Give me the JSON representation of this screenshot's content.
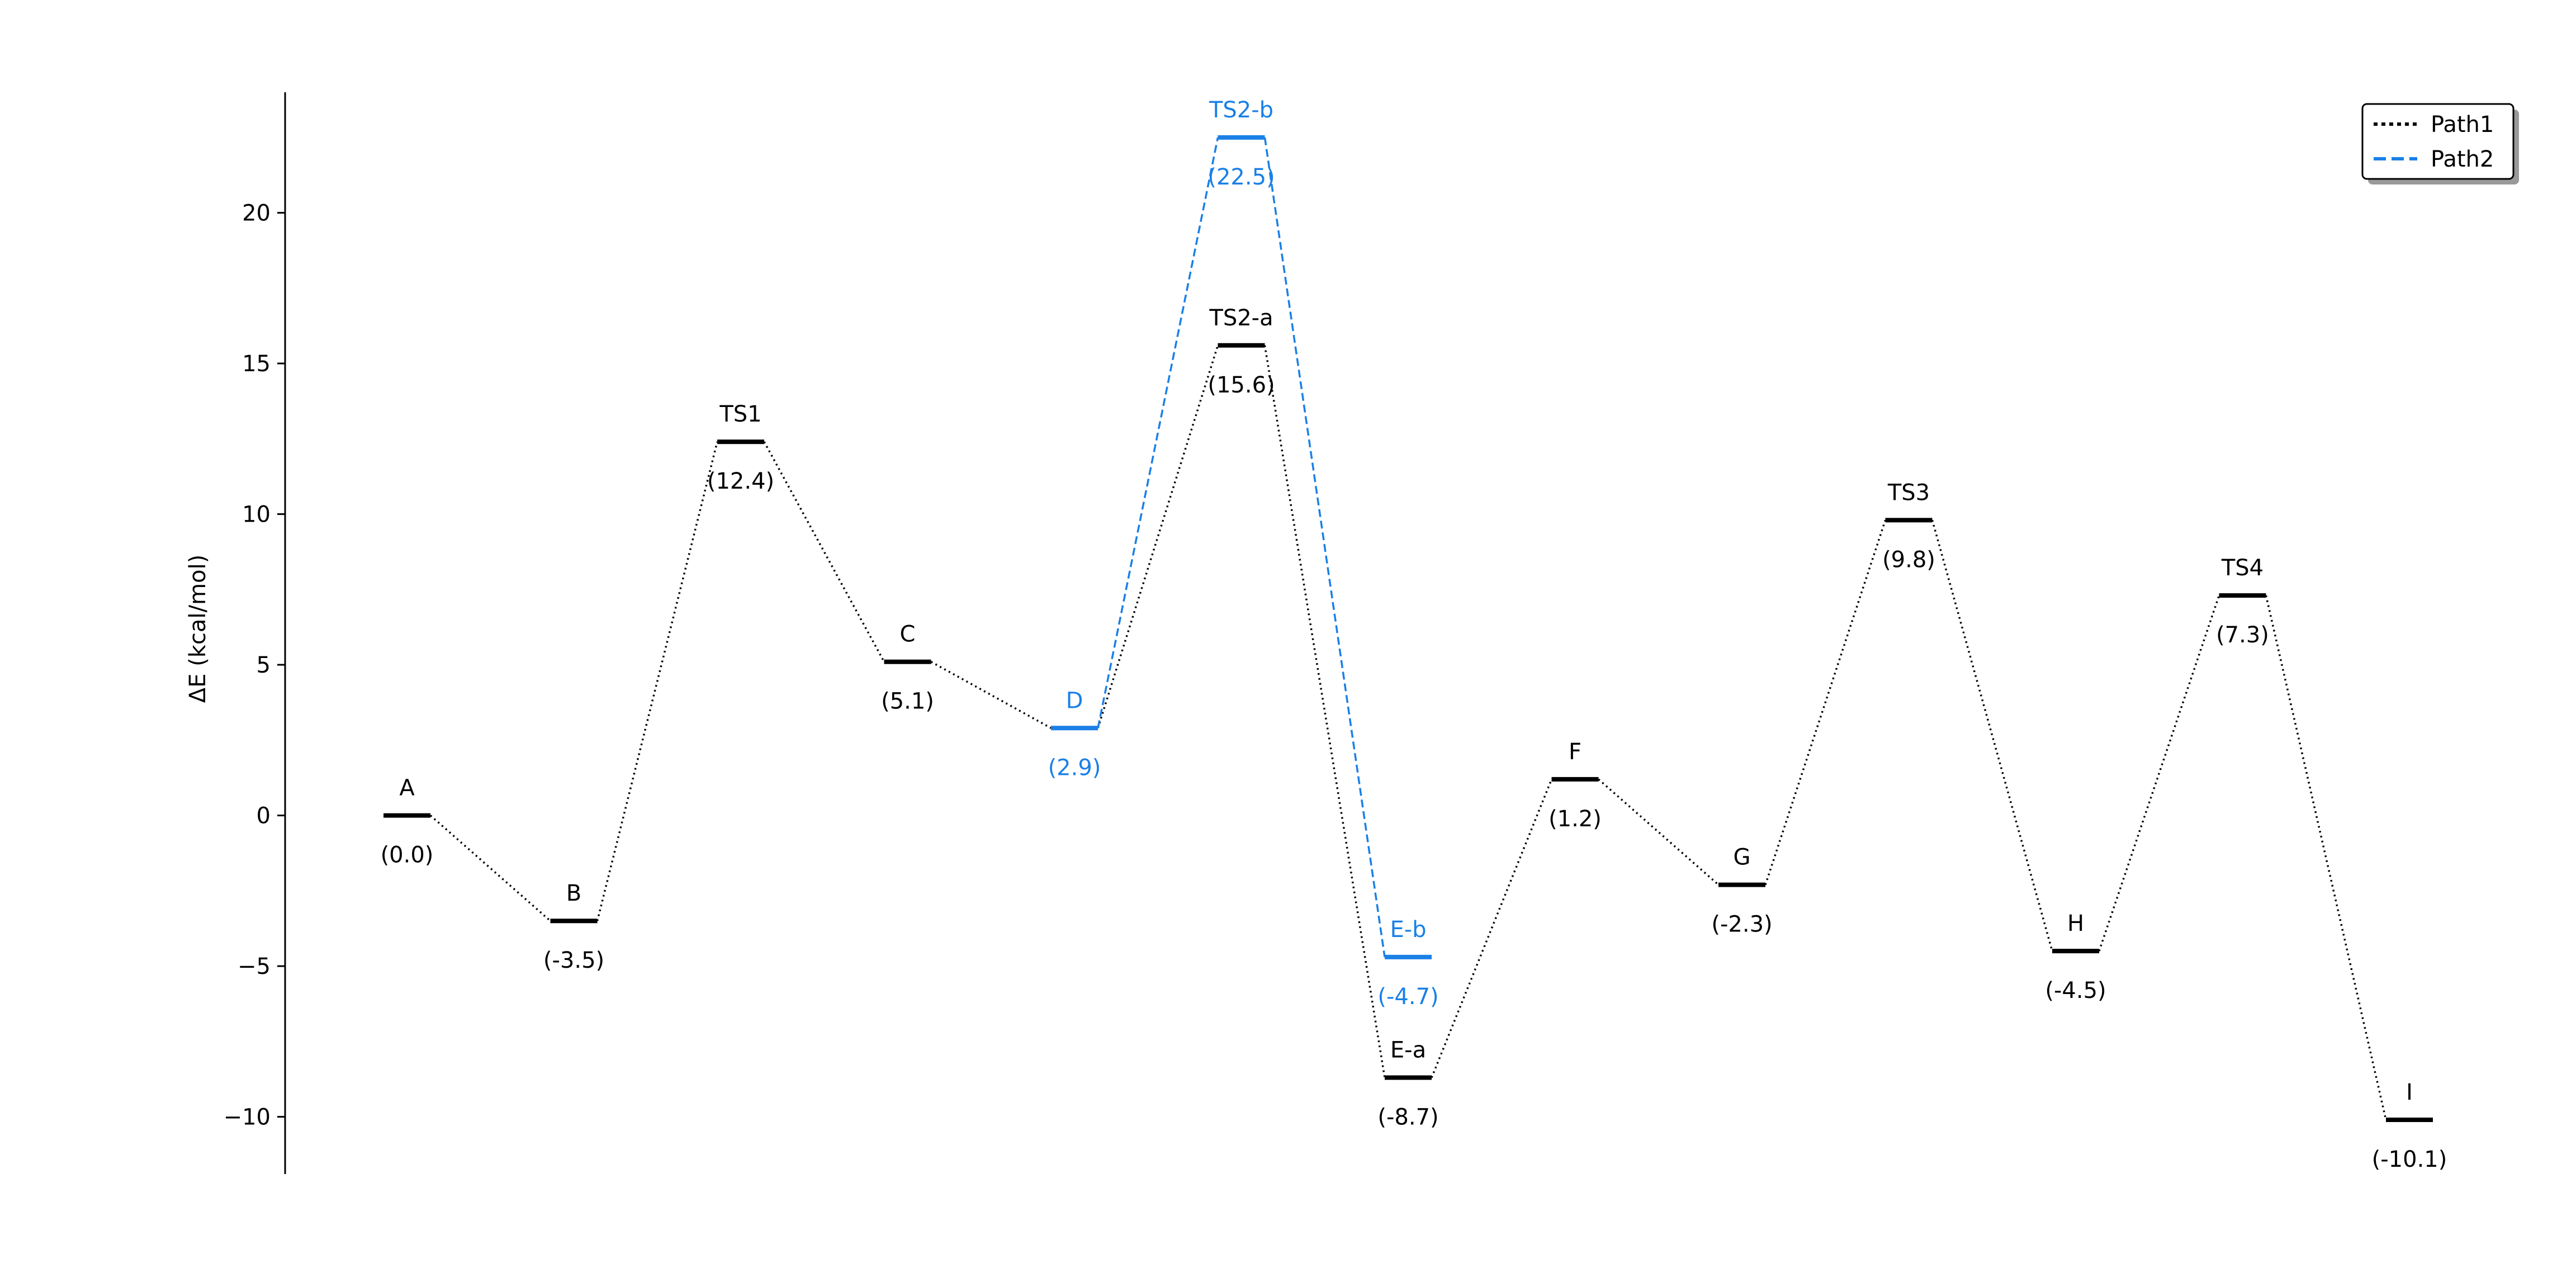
{
  "chart_data": {
    "type": "line",
    "title": "",
    "xlabel": "",
    "ylabel": "ΔE (kcal/mol)",
    "ylim": [
      -11.9,
      24.0
    ],
    "yticks": [
      {
        "value": -10,
        "label": "−10"
      },
      {
        "value": -5,
        "label": "−5"
      },
      {
        "value": 0,
        "label": "0"
      },
      {
        "value": 5,
        "label": "5"
      },
      {
        "value": 10,
        "label": "10"
      },
      {
        "value": 15,
        "label": "15"
      },
      {
        "value": 20,
        "label": "20"
      }
    ],
    "grid": false,
    "legend_position": "top-right",
    "colors": {
      "path1": "#000000",
      "path2": "#1a80e6"
    },
    "states": [
      {
        "id": "A",
        "x": 0,
        "energy": 0.0,
        "label": "A",
        "value_text": "(0.0)",
        "color": "#000000"
      },
      {
        "id": "B",
        "x": 1,
        "energy": -3.5,
        "label": "B",
        "value_text": "(-3.5)",
        "color": "#000000"
      },
      {
        "id": "TS1",
        "x": 2,
        "energy": 12.4,
        "label": "TS1",
        "value_text": "(12.4)",
        "color": "#000000"
      },
      {
        "id": "C",
        "x": 3,
        "energy": 5.1,
        "label": "C",
        "value_text": "(5.1)",
        "color": "#000000"
      },
      {
        "id": "D",
        "x": 4,
        "energy": 2.9,
        "label": "D",
        "value_text": "(2.9)",
        "color": "#1a80e6"
      },
      {
        "id": "TS2-a",
        "x": 5,
        "energy": 15.6,
        "label": "TS2-a",
        "value_text": "(15.6)",
        "color": "#000000"
      },
      {
        "id": "TS2-b",
        "x": 5,
        "energy": 22.5,
        "label": "TS2-b",
        "value_text": "(22.5)",
        "color": "#1a80e6"
      },
      {
        "id": "E-a",
        "x": 6,
        "energy": -8.7,
        "label": "E-a",
        "value_text": "(-8.7)",
        "color": "#000000"
      },
      {
        "id": "E-b",
        "x": 6,
        "energy": -4.7,
        "label": "E-b",
        "value_text": "(-4.7)",
        "color": "#1a80e6"
      },
      {
        "id": "F",
        "x": 7,
        "energy": 1.2,
        "label": "F",
        "value_text": "(1.2)",
        "color": "#000000"
      },
      {
        "id": "G",
        "x": 8,
        "energy": -2.3,
        "label": "G",
        "value_text": "(-2.3)",
        "color": "#000000"
      },
      {
        "id": "TS3",
        "x": 9,
        "energy": 9.8,
        "label": "TS3",
        "value_text": "(9.8)",
        "color": "#000000"
      },
      {
        "id": "H",
        "x": 10,
        "energy": -4.5,
        "label": "H",
        "value_text": "(-4.5)",
        "color": "#000000"
      },
      {
        "id": "TS4",
        "x": 11,
        "energy": 7.3,
        "label": "TS4",
        "value_text": "(7.3)",
        "color": "#000000"
      },
      {
        "id": "I",
        "x": 12,
        "energy": -10.1,
        "label": "I",
        "value_text": "(-10.1)",
        "color": "#000000"
      }
    ],
    "series": [
      {
        "name": "Path1",
        "style": "dotted",
        "color": "#000000",
        "path": [
          "A",
          "B",
          "TS1",
          "C",
          "D",
          "TS2-a",
          "E-a",
          "F",
          "G",
          "TS3",
          "H",
          "TS4",
          "I"
        ]
      },
      {
        "name": "Path2",
        "style": "dashed",
        "color": "#1a80e6",
        "path": [
          "D",
          "TS2-b",
          "E-b"
        ]
      }
    ]
  }
}
